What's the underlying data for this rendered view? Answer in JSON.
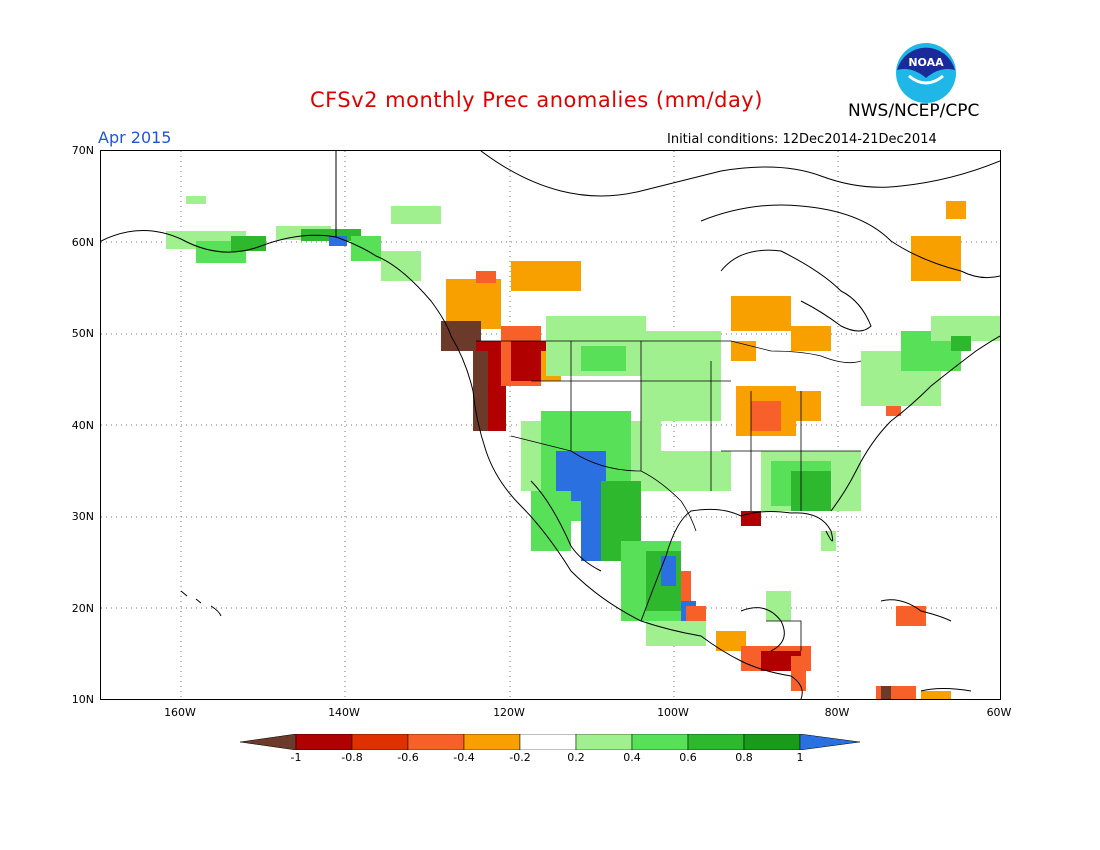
{
  "header": {
    "title": "CFSv2 monthly Prec anomalies (mm/day)",
    "agency": "NWS/NCEP/CPC",
    "logo_text": "NOAA",
    "month": "Apr 2015",
    "initial_conditions": "Initial conditions: 12Dec2014-21Dec2014"
  },
  "axes": {
    "lat_labels": [
      "70N",
      "60N",
      "50N",
      "40N",
      "30N",
      "20N",
      "10N"
    ],
    "lon_labels": [
      "160W",
      "140W",
      "120W",
      "100W",
      "80W",
      "60W"
    ]
  },
  "colorbar": {
    "labels": [
      "-1",
      "-0.8",
      "-0.6",
      "-0.4",
      "-0.2",
      "0.2",
      "0.4",
      "0.6",
      "0.8",
      "1"
    ],
    "colors": [
      "#6b3a2a",
      "#b00000",
      "#e03000",
      "#f8602a",
      "#f8a000",
      "#ffffff",
      "#a0f090",
      "#58e058",
      "#2eb82e",
      "#1a9a1a",
      "#2a70e0"
    ]
  },
  "map": {
    "regions": [
      {
        "name": "alaska-south-wet",
        "color": "#58e058"
      },
      {
        "name": "pacific-northwest-dry",
        "color": "#b00000"
      },
      {
        "name": "southwest-wet",
        "color": "#2a70e0"
      },
      {
        "name": "ohio-valley-dry",
        "color": "#f8602a"
      },
      {
        "name": "southeast-wet",
        "color": "#2eb82e"
      },
      {
        "name": "central-america-dry",
        "color": "#b00000"
      }
    ]
  }
}
